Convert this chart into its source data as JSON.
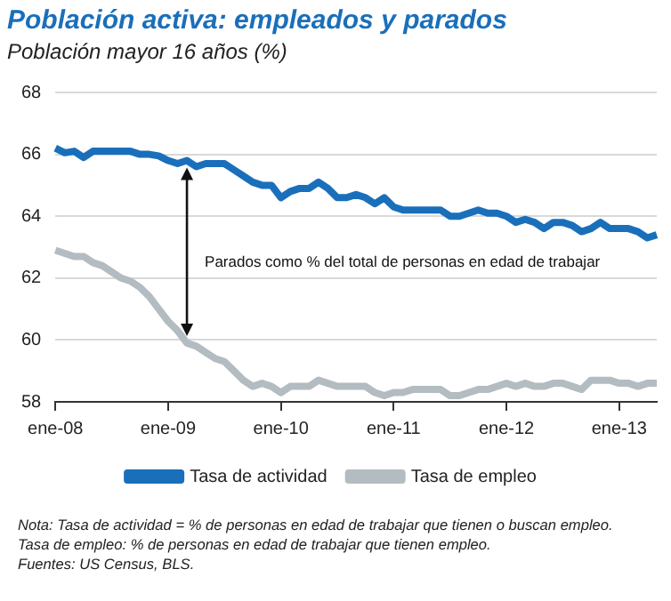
{
  "chart_data": {
    "type": "line",
    "title": "Población activa: empleados y parados",
    "subtitle": "Población mayor 16 años (%)",
    "categories": [
      "ene-08",
      null,
      null,
      null,
      null,
      null,
      null,
      null,
      null,
      null,
      null,
      null,
      "ene-09",
      null,
      null,
      null,
      null,
      null,
      null,
      null,
      null,
      null,
      null,
      null,
      "ene-10",
      null,
      null,
      null,
      null,
      null,
      null,
      null,
      null,
      null,
      null,
      null,
      "ene-11",
      null,
      null,
      null,
      null,
      null,
      null,
      null,
      null,
      null,
      null,
      null,
      "ene-12",
      null,
      null,
      null,
      null,
      null,
      null,
      null,
      null,
      null,
      null,
      null,
      "ene-13",
      null,
      null,
      null,
      null
    ],
    "series": [
      {
        "name": "Tasa de actividad",
        "color": "#1a6fba",
        "values": [
          66.2,
          66.05,
          66.1,
          65.9,
          66.1,
          66.1,
          66.1,
          66.1,
          66.1,
          66.0,
          66.0,
          65.95,
          65.8,
          65.7,
          65.8,
          65.6,
          65.7,
          65.7,
          65.7,
          65.5,
          65.3,
          65.1,
          65.0,
          65.0,
          64.6,
          64.8,
          64.9,
          64.9,
          65.1,
          64.9,
          64.6,
          64.6,
          64.7,
          64.6,
          64.4,
          64.6,
          64.3,
          64.2,
          64.2,
          64.2,
          64.2,
          64.2,
          64.0,
          64.0,
          64.1,
          64.2,
          64.1,
          64.1,
          64.0,
          63.8,
          63.9,
          63.8,
          63.6,
          63.8,
          63.8,
          63.7,
          63.5,
          63.6,
          63.8,
          63.6,
          63.6,
          63.6,
          63.5,
          63.3,
          63.4
        ]
      },
      {
        "name": "Tasa de empleo",
        "color": "#b3bcc0",
        "values": [
          62.9,
          62.8,
          62.7,
          62.7,
          62.5,
          62.4,
          62.2,
          62.0,
          61.9,
          61.7,
          61.4,
          61.0,
          60.6,
          60.3,
          59.9,
          59.8,
          59.6,
          59.4,
          59.3,
          59.0,
          58.7,
          58.5,
          58.6,
          58.5,
          58.3,
          58.5,
          58.5,
          58.5,
          58.7,
          58.6,
          58.5,
          58.5,
          58.5,
          58.5,
          58.3,
          58.2,
          58.3,
          58.3,
          58.4,
          58.4,
          58.4,
          58.4,
          58.2,
          58.2,
          58.3,
          58.4,
          58.4,
          58.5,
          58.6,
          58.5,
          58.6,
          58.5,
          58.5,
          58.6,
          58.6,
          58.5,
          58.4,
          58.7,
          58.7,
          58.7,
          58.6,
          58.6,
          58.5,
          58.6,
          58.6
        ]
      }
    ],
    "ylim": [
      58,
      68
    ],
    "yticks": [
      58,
      60,
      62,
      64,
      66,
      68
    ],
    "grid": "y",
    "legend": "bottom",
    "marker": "none",
    "line_style": "solid",
    "annotations": [
      "Parados como % del total de personas en edad de trabajar",
      "Nota: Tasa de actividad = % de personas en edad de trabajar que tienen o buscan empleo.",
      "Tasa de empleo: % de personas en edad de trabajar que tienen empleo.",
      "Fuentes: US Census, BLS."
    ]
  }
}
